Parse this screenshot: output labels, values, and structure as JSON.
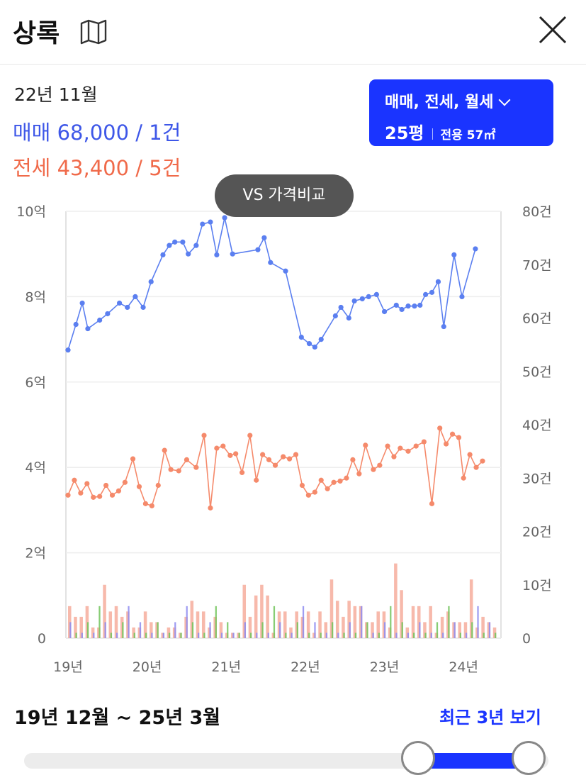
{
  "header": {
    "title": "상록",
    "map_icon": "map-icon",
    "close_icon": "close-icon"
  },
  "info": {
    "date": "22년 11월",
    "sale": "매매 68,000 / 1건",
    "jeonse": "전세 43,400 / 5건"
  },
  "filter": {
    "types": "매매, 전세, 월세",
    "size": "25평",
    "area": "전용 57㎡"
  },
  "compare_button": "VS 가격비교",
  "range": {
    "label": "19년 12월 ~ 25년 3월",
    "recent_link": "최근 3년 보기"
  },
  "colors": {
    "sale": "#5b7ff0",
    "jeonse": "#f58a6b",
    "accent": "#1a34ff",
    "bar_sale": "#8e8cf0",
    "bar_jeonse": "#f6ad9c",
    "bar_rent": "#72c45c",
    "bar_other": "#c084d6"
  },
  "chart_data": {
    "type": "line",
    "x_ticks": [
      "19년",
      "20년",
      "21년",
      "22년",
      "23년",
      "24년"
    ],
    "y_left": {
      "ticks": [
        "0",
        "2억",
        "4억",
        "6억",
        "8억",
        "10억"
      ],
      "range": [
        0,
        10
      ]
    },
    "y_right": {
      "ticks": [
        "0",
        "10건",
        "20건",
        "30건",
        "40건",
        "50건",
        "60건",
        "70건",
        "80건"
      ],
      "range": [
        0,
        80
      ]
    },
    "grid": true,
    "series": [
      {
        "points": [
          [
            2019.0,
            6.75
          ],
          [
            2019.1,
            7.35
          ],
          [
            2019.18,
            7.85
          ],
          [
            2019.25,
            7.25
          ],
          [
            2019.4,
            7.45
          ],
          [
            2019.5,
            7.6
          ],
          [
            2019.65,
            7.85
          ],
          [
            2019.75,
            7.75
          ],
          [
            2019.85,
            8.0
          ],
          [
            2019.95,
            7.75
          ],
          [
            2020.05,
            8.35
          ],
          [
            2020.2,
            8.98
          ],
          [
            2020.28,
            9.2
          ],
          [
            2020.35,
            9.28
          ],
          [
            2020.45,
            9.28
          ],
          [
            2020.52,
            9.0
          ],
          [
            2020.62,
            9.2
          ],
          [
            2020.7,
            9.7
          ],
          [
            2020.8,
            9.75
          ],
          [
            2020.88,
            8.98
          ],
          [
            2020.98,
            9.85
          ],
          [
            2021.08,
            9.0
          ],
          [
            2021.4,
            9.1
          ],
          [
            2021.48,
            9.38
          ],
          [
            2021.56,
            8.8
          ],
          [
            2021.75,
            8.6
          ],
          [
            2021.95,
            7.05
          ],
          [
            2022.05,
            6.9
          ],
          [
            2022.12,
            6.82
          ],
          [
            2022.2,
            7.0
          ],
          [
            2022.38,
            7.55
          ],
          [
            2022.45,
            7.75
          ],
          [
            2022.55,
            7.5
          ],
          [
            2022.62,
            7.9
          ],
          [
            2022.72,
            7.95
          ],
          [
            2022.8,
            8.0
          ],
          [
            2022.9,
            8.05
          ],
          [
            2023.0,
            7.65
          ],
          [
            2023.15,
            7.8
          ],
          [
            2023.22,
            7.7
          ],
          [
            2023.3,
            7.78
          ],
          [
            2023.38,
            7.78
          ],
          [
            2023.45,
            7.8
          ],
          [
            2023.52,
            8.05
          ],
          [
            2023.6,
            8.1
          ],
          [
            2023.68,
            8.35
          ],
          [
            2023.75,
            7.3
          ],
          [
            2023.88,
            8.98
          ],
          [
            2023.98,
            8.0
          ],
          [
            2024.15,
            9.12
          ]
        ]
      },
      {
        "points": [
          [
            2019.0,
            3.35
          ],
          [
            2019.08,
            3.7
          ],
          [
            2019.16,
            3.4
          ],
          [
            2019.24,
            3.62
          ],
          [
            2019.32,
            3.3
          ],
          [
            2019.4,
            3.32
          ],
          [
            2019.48,
            3.58
          ],
          [
            2019.56,
            3.35
          ],
          [
            2019.64,
            3.45
          ],
          [
            2019.72,
            3.65
          ],
          [
            2019.82,
            4.2
          ],
          [
            2019.9,
            3.55
          ],
          [
            2019.98,
            3.15
          ],
          [
            2020.06,
            3.1
          ],
          [
            2020.14,
            3.58
          ],
          [
            2020.22,
            4.4
          ],
          [
            2020.3,
            3.95
          ],
          [
            2020.4,
            3.92
          ],
          [
            2020.5,
            4.18
          ],
          [
            2020.62,
            4.0
          ],
          [
            2020.72,
            4.75
          ],
          [
            2020.8,
            3.05
          ],
          [
            2020.88,
            4.45
          ],
          [
            2020.96,
            4.5
          ],
          [
            2021.05,
            4.28
          ],
          [
            2021.12,
            4.32
          ],
          [
            2021.2,
            3.88
          ],
          [
            2021.3,
            4.75
          ],
          [
            2021.38,
            3.7
          ],
          [
            2021.46,
            4.3
          ],
          [
            2021.54,
            4.18
          ],
          [
            2021.62,
            4.05
          ],
          [
            2021.72,
            4.25
          ],
          [
            2021.8,
            4.2
          ],
          [
            2021.88,
            4.3
          ],
          [
            2021.96,
            3.58
          ],
          [
            2022.04,
            3.35
          ],
          [
            2022.12,
            3.42
          ],
          [
            2022.2,
            3.7
          ],
          [
            2022.28,
            3.5
          ],
          [
            2022.36,
            3.65
          ],
          [
            2022.44,
            3.68
          ],
          [
            2022.52,
            3.75
          ],
          [
            2022.6,
            4.18
          ],
          [
            2022.68,
            3.85
          ],
          [
            2022.76,
            4.52
          ],
          [
            2022.86,
            3.95
          ],
          [
            2022.94,
            4.05
          ],
          [
            2023.04,
            4.5
          ],
          [
            2023.12,
            4.25
          ],
          [
            2023.2,
            4.45
          ],
          [
            2023.3,
            4.38
          ],
          [
            2023.4,
            4.5
          ],
          [
            2023.5,
            4.6
          ],
          [
            2023.6,
            3.15
          ],
          [
            2023.7,
            4.92
          ],
          [
            2023.78,
            4.55
          ],
          [
            2023.86,
            4.78
          ],
          [
            2023.94,
            4.7
          ],
          [
            2024.0,
            3.75
          ],
          [
            2024.08,
            4.3
          ],
          [
            2024.16,
            4.0
          ],
          [
            2024.24,
            4.15
          ]
        ]
      }
    ],
    "bar_counts": [
      6,
      4,
      4,
      6,
      2,
      2,
      10,
      5,
      6,
      4,
      5,
      2,
      2,
      5,
      3,
      3,
      1,
      2,
      2,
      1,
      4,
      7,
      5,
      5,
      2,
      4,
      3,
      1,
      1,
      1,
      10,
      4,
      8,
      10,
      8,
      1,
      5,
      5,
      2,
      5,
      4,
      5,
      1,
      5,
      3,
      11,
      7,
      4,
      7,
      6,
      6,
      3,
      3,
      5,
      5,
      2,
      14,
      9,
      2,
      6,
      6,
      3,
      6,
      1,
      4,
      5,
      3,
      3,
      3,
      11,
      2,
      4,
      3,
      2
    ]
  }
}
